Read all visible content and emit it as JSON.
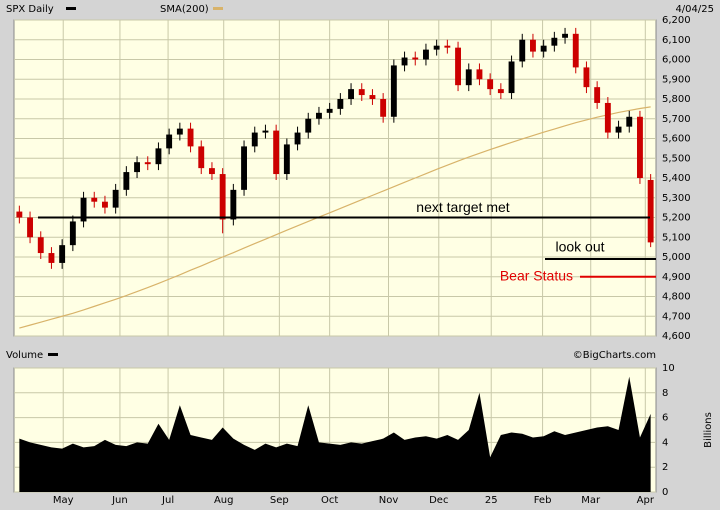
{
  "chart_data": {
    "type": "candlestick",
    "title": "SPX Daily",
    "date": "4/04/25",
    "source": "©BigCharts.com",
    "x": [
      0,
      1,
      2,
      3,
      4,
      5,
      6,
      7,
      8,
      9,
      10,
      11,
      12,
      13,
      14,
      15,
      16,
      17,
      18,
      19,
      20,
      21,
      22,
      23,
      24,
      25,
      26,
      27,
      28,
      29,
      30,
      31,
      32,
      33,
      34,
      35,
      36,
      37,
      38,
      39,
      40,
      41,
      42,
      43,
      44,
      45,
      46,
      47,
      48,
      49,
      50,
      51,
      52,
      53,
      54,
      55,
      56,
      57,
      58,
      59
    ],
    "open": [
      5230,
      5200,
      5100,
      5020,
      4970,
      5060,
      5180,
      5300,
      5280,
      5250,
      5340,
      5430,
      5480,
      5470,
      5550,
      5620,
      5650,
      5560,
      5450,
      5420,
      5190,
      5340,
      5560,
      5630,
      5640,
      5420,
      5570,
      5630,
      5700,
      5730,
      5750,
      5800,
      5850,
      5820,
      5800,
      5710,
      5970,
      6010,
      6000,
      6050,
      6070,
      6060,
      5870,
      5950,
      5900,
      5850,
      5830,
      5990,
      6100,
      6040,
      6070,
      6110,
      6130,
      5960,
      5860,
      5780,
      5630,
      5660,
      5710,
      5390
    ],
    "high": [
      5260,
      5230,
      5130,
      5050,
      5090,
      5210,
      5330,
      5330,
      5310,
      5370,
      5460,
      5510,
      5510,
      5580,
      5650,
      5680,
      5680,
      5590,
      5480,
      5450,
      5370,
      5590,
      5660,
      5670,
      5670,
      5600,
      5660,
      5730,
      5760,
      5780,
      5830,
      5880,
      5880,
      5850,
      5830,
      6000,
      6040,
      6040,
      6080,
      6100,
      6100,
      6090,
      5980,
      5980,
      5930,
      5880,
      6020,
      6130,
      6130,
      6100,
      6140,
      6160,
      6160,
      5990,
      5890,
      5810,
      5690,
      5740,
      5740,
      5420
    ],
    "low": [
      5170,
      5070,
      4990,
      4940,
      4940,
      5030,
      5150,
      5250,
      5220,
      5220,
      5310,
      5400,
      5440,
      5440,
      5520,
      5590,
      5530,
      5420,
      5390,
      5120,
      5160,
      5310,
      5530,
      5600,
      5390,
      5390,
      5540,
      5600,
      5670,
      5700,
      5720,
      5770,
      5790,
      5770,
      5680,
      5680,
      5940,
      5970,
      5970,
      6020,
      6030,
      5840,
      5840,
      5870,
      5820,
      5800,
      5800,
      5960,
      6010,
      6010,
      6040,
      6080,
      5930,
      5830,
      5750,
      5600,
      5600,
      5630,
      5370,
      5050
    ],
    "close": [
      5200,
      5100,
      5020,
      4970,
      5060,
      5180,
      5300,
      5280,
      5250,
      5340,
      5430,
      5480,
      5470,
      5550,
      5620,
      5650,
      5560,
      5450,
      5420,
      5190,
      5340,
      5560,
      5630,
      5640,
      5420,
      5570,
      5630,
      5700,
      5730,
      5750,
      5800,
      5850,
      5820,
      5800,
      5710,
      5970,
      6010,
      6000,
      6050,
      6070,
      6060,
      5870,
      5950,
      5900,
      5850,
      5830,
      5990,
      6100,
      6040,
      6070,
      6110,
      6130,
      5960,
      5860,
      5780,
      5630,
      5660,
      5710,
      5400,
      5074
    ],
    "color_up": "#000000",
    "color_down": "#cc0000",
    "overlay": {
      "name": "SMA(200)",
      "color": "#d8b36a",
      "values": [
        4640,
        4655,
        4670,
        4685,
        4700,
        4715,
        4732,
        4750,
        4768,
        4786,
        4805,
        4825,
        4845,
        4866,
        4888,
        4910,
        4933,
        4955,
        4978,
        5000,
        5022,
        5045,
        5068,
        5090,
        5113,
        5136,
        5158,
        5180,
        5202,
        5224,
        5246,
        5268,
        5290,
        5312,
        5334,
        5356,
        5378,
        5400,
        5422,
        5444,
        5465,
        5486,
        5506,
        5525,
        5544,
        5562,
        5580,
        5598,
        5615,
        5632,
        5648,
        5664,
        5680,
        5694,
        5708,
        5720,
        5732,
        5742,
        5752,
        5760
      ]
    },
    "xlim": [
      -0.5,
      59.5
    ],
    "xticks": [
      {
        "value": 4.1,
        "label": "May"
      },
      {
        "value": 9.4,
        "label": "Jun"
      },
      {
        "value": 13.9,
        "label": "Jul"
      },
      {
        "value": 19.1,
        "label": "Aug"
      },
      {
        "value": 24.3,
        "label": "Sep"
      },
      {
        "value": 29.0,
        "label": "Oct"
      },
      {
        "value": 34.5,
        "label": "Nov"
      },
      {
        "value": 39.2,
        "label": "Dec"
      },
      {
        "value": 44.1,
        "label": "25"
      },
      {
        "value": 48.9,
        "label": "Feb"
      },
      {
        "value": 53.4,
        "label": "Mar"
      },
      {
        "value": 58.5,
        "label": "Apr"
      }
    ],
    "ylim": [
      4600,
      6200
    ],
    "yticks": [
      {
        "value": 4600,
        "label": "4,600"
      },
      {
        "value": 4700,
        "label": "4,700"
      },
      {
        "value": 4800,
        "label": "4,800"
      },
      {
        "value": 4900,
        "label": "4,900"
      },
      {
        "value": 5000,
        "label": "5,000"
      },
      {
        "value": 5100,
        "label": "5,100"
      },
      {
        "value": 5200,
        "label": "5,200"
      },
      {
        "value": 5300,
        "label": "5,300"
      },
      {
        "value": 5400,
        "label": "5,400"
      },
      {
        "value": 5500,
        "label": "5,500"
      },
      {
        "value": 5600,
        "label": "5,600"
      },
      {
        "value": 5700,
        "label": "5,700"
      },
      {
        "value": 5800,
        "label": "5,800"
      },
      {
        "value": 5900,
        "label": "5,900"
      },
      {
        "value": 6000,
        "label": "6,000"
      },
      {
        "value": 6100,
        "label": "6,100"
      },
      {
        "value": 6200,
        "label": "6,200"
      }
    ],
    "grid": true,
    "annotations": [
      {
        "text": "next target met",
        "level": 5200,
        "color": "#000000"
      },
      {
        "text": "look out",
        "level": 4990,
        "color": "#000000"
      },
      {
        "text": "Bear Status",
        "level": 4900,
        "color": "#e00000"
      }
    ],
    "volume": {
      "name": "Volume",
      "ylabel": "Billions",
      "color": "#000000",
      "values": [
        4.3,
        4.0,
        3.8,
        3.6,
        3.5,
        3.9,
        3.6,
        3.7,
        4.2,
        3.8,
        3.7,
        4.0,
        3.9,
        5.5,
        4.2,
        7.0,
        4.6,
        4.4,
        4.2,
        5.2,
        4.3,
        3.8,
        3.4,
        3.9,
        3.6,
        3.9,
        3.7,
        7.0,
        4.0,
        3.9,
        3.8,
        4.0,
        3.9,
        4.1,
        4.3,
        4.8,
        4.2,
        4.4,
        4.5,
        4.3,
        4.6,
        4.2,
        5.0,
        8.0,
        2.8,
        4.6,
        4.8,
        4.7,
        4.4,
        4.5,
        4.9,
        4.6,
        4.8,
        5.0,
        5.2,
        5.3,
        5.0,
        9.3,
        4.4,
        6.3
      ],
      "ylim": [
        0,
        10
      ],
      "yticks": [
        0,
        2,
        4,
        6,
        8,
        10
      ]
    }
  }
}
